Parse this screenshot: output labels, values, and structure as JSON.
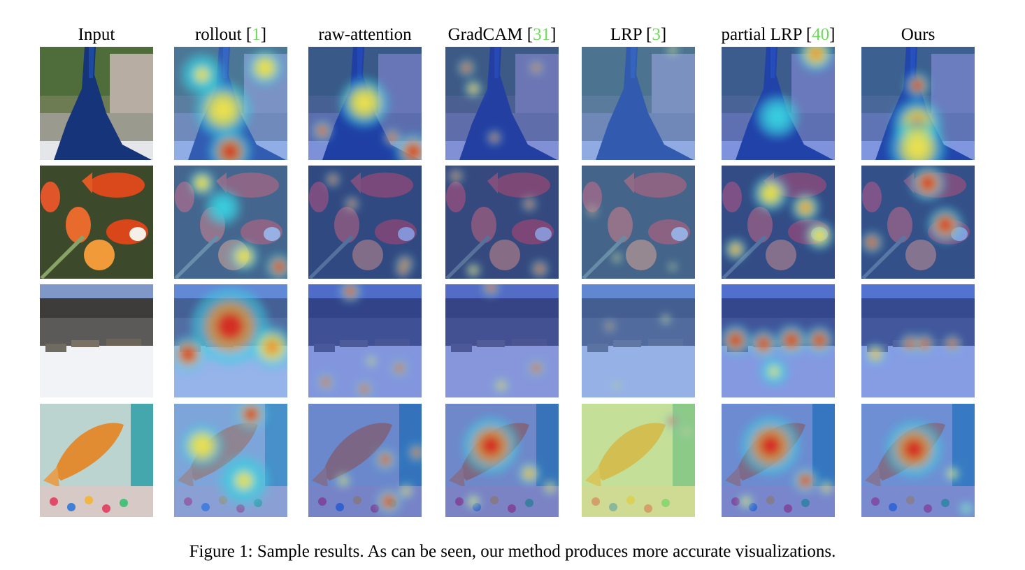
{
  "figure": {
    "columns": [
      {
        "label": "Input",
        "ref": ""
      },
      {
        "label": "rollout",
        "ref": "1"
      },
      {
        "label": "raw-attention",
        "ref": ""
      },
      {
        "label": "GradCAM",
        "ref": "31"
      },
      {
        "label": "LRP",
        "ref": "3"
      },
      {
        "label": "partial LRP",
        "ref": "40"
      },
      {
        "label": "Ours",
        "ref": ""
      }
    ],
    "rows": [
      {
        "subject": "peacock"
      },
      {
        "subject": "goldfish with tulips"
      },
      {
        "subject": "sled dogs on snow"
      },
      {
        "subject": "goldfish in aquarium"
      }
    ],
    "caption": "Figure 1: Sample results. As can be seen, our method produces more accurate visualizations."
  }
}
